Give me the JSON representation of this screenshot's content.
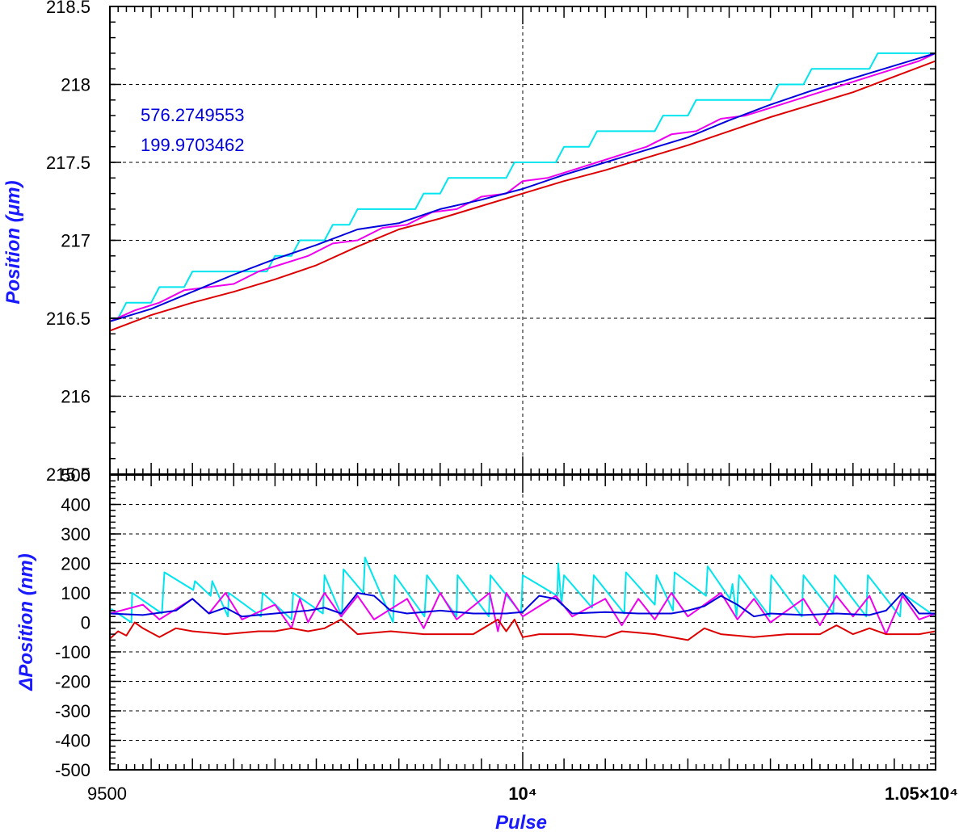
{
  "chart_data": [
    {
      "type": "line",
      "title": "",
      "xlabel": "",
      "ylabel": "Position (μm)",
      "xlim": [
        9500,
        10500
      ],
      "ylim": [
        215.5,
        218.5
      ],
      "x_ticks": [
        9500,
        10000,
        10500
      ],
      "x_tick_labels": [
        "9500",
        "10⁴",
        "1.05×10⁴"
      ],
      "y_ticks": [
        215.5,
        216,
        216.5,
        217,
        217.5,
        218,
        218.5
      ],
      "y_tick_labels": [
        "215.5",
        "216",
        "216.5",
        "217",
        "217.5",
        "218",
        "218.5"
      ],
      "grid": true,
      "annotations": [
        "576.2749553",
        "199.9703462"
      ],
      "series": [
        {
          "color": "#00e5ee",
          "x": [
            9500,
            9510,
            9520,
            9550,
            9560,
            9590,
            9600,
            9630,
            9640,
            9660,
            9670,
            9690,
            9700,
            9720,
            9730,
            9760,
            9770,
            9790,
            9800,
            9830,
            9840,
            9870,
            9880,
            9900,
            9910,
            9940,
            9950,
            9980,
            9990,
            10000,
            10010,
            10040,
            10050,
            10080,
            10090,
            10120,
            10130,
            10160,
            10170,
            10200,
            10210,
            10230,
            10240,
            10260,
            10270,
            10300,
            10310,
            10340,
            10350,
            10380,
            10390,
            10420,
            10430,
            10460,
            10470,
            10500
          ],
          "y": [
            216.5,
            216.5,
            216.6,
            216.6,
            216.7,
            216.7,
            216.8,
            216.8,
            216.8,
            216.8,
            216.8,
            216.8,
            216.9,
            216.9,
            217.0,
            217.0,
            217.1,
            217.1,
            217.2,
            217.2,
            217.2,
            217.2,
            217.3,
            217.3,
            217.4,
            217.4,
            217.4,
            217.4,
            217.5,
            217.5,
            217.5,
            217.5,
            217.6,
            217.6,
            217.7,
            217.7,
            217.7,
            217.7,
            217.8,
            217.8,
            217.9,
            217.9,
            217.9,
            217.9,
            217.9,
            217.9,
            218.0,
            218.0,
            218.1,
            218.1,
            218.1,
            218.1,
            218.2,
            218.2,
            218.2,
            218.2
          ]
        },
        {
          "color": "#ee00ee",
          "x": [
            9500,
            9530,
            9560,
            9590,
            9620,
            9650,
            9680,
            9710,
            9740,
            9770,
            9800,
            9830,
            9860,
            9890,
            9920,
            9950,
            9980,
            10000,
            10030,
            10060,
            10090,
            10120,
            10150,
            10180,
            10210,
            10240,
            10270,
            10300,
            10330,
            10360,
            10390,
            10420,
            10450,
            10480,
            10500
          ],
          "y": [
            216.48,
            216.55,
            216.6,
            216.68,
            216.7,
            216.72,
            216.8,
            216.85,
            216.9,
            216.98,
            217.0,
            217.08,
            217.1,
            217.18,
            217.2,
            217.28,
            217.3,
            217.38,
            217.4,
            217.45,
            217.5,
            217.55,
            217.6,
            217.68,
            217.7,
            217.78,
            217.8,
            217.85,
            217.9,
            217.95,
            218.0,
            218.05,
            218.1,
            218.15,
            218.2
          ]
        },
        {
          "color": "#0000dd",
          "x": [
            9500,
            9550,
            9600,
            9650,
            9700,
            9750,
            9800,
            9850,
            9900,
            9950,
            10000,
            10050,
            10100,
            10150,
            10200,
            10250,
            10300,
            10350,
            10400,
            10450,
            10500
          ],
          "y": [
            216.48,
            216.56,
            216.67,
            216.78,
            216.88,
            216.97,
            217.07,
            217.11,
            217.2,
            217.26,
            217.33,
            217.42,
            217.5,
            217.58,
            217.66,
            217.77,
            217.87,
            217.96,
            218.04,
            218.12,
            218.2
          ]
        },
        {
          "color": "#dd0000",
          "x": [
            9500,
            9550,
            9600,
            9650,
            9700,
            9750,
            9800,
            9850,
            9900,
            9950,
            10000,
            10050,
            10100,
            10150,
            10200,
            10250,
            10300,
            10350,
            10400,
            10450,
            10500
          ],
          "y": [
            216.42,
            216.52,
            216.6,
            216.67,
            216.75,
            216.84,
            216.96,
            217.07,
            217.14,
            217.22,
            217.3,
            217.38,
            217.45,
            217.53,
            217.61,
            217.7,
            217.79,
            217.87,
            217.95,
            218.05,
            218.15
          ]
        }
      ]
    },
    {
      "type": "line",
      "title": "",
      "xlabel": "Pulse",
      "ylabel": "ΔPosition (nm)",
      "xlim": [
        9500,
        10500
      ],
      "ylim": [
        -500,
        500
      ],
      "x_ticks": [
        9500,
        10000,
        10500
      ],
      "x_tick_labels": [
        "9500",
        "10⁴",
        "1.05×10⁴"
      ],
      "y_ticks": [
        -500,
        -400,
        -300,
        -200,
        -100,
        0,
        100,
        200,
        300,
        400,
        500
      ],
      "y_tick_labels": [
        "-500",
        "-400",
        "-300",
        "-200",
        "-100",
        "0",
        "100",
        "200",
        "300",
        "400",
        "500"
      ],
      "grid": true,
      "series": [
        {
          "color": "#00e5ee",
          "x": [
            9500,
            9502,
            9526,
            9527,
            9563,
            9566,
            9601,
            9603,
            9622,
            9624,
            9643,
            9644,
            9683,
            9685,
            9720,
            9722,
            9758,
            9760,
            9781,
            9783,
            9807,
            9809,
            9843,
            9845,
            9881,
            9884,
            9920,
            9921,
            9959,
            9961,
            9998,
            10000,
            10042,
            10043,
            10047,
            10050,
            10084,
            10086,
            10123,
            10125,
            10160,
            10162,
            10182,
            10184,
            10222,
            10224,
            10251,
            10254,
            10259,
            10262,
            10299,
            10301,
            10338,
            10340,
            10376,
            10378,
            10416,
            10418,
            10457,
            10459,
            10500
          ],
          "y": [
            25,
            45,
            0,
            100,
            30,
            170,
            110,
            140,
            90,
            140,
            20,
            100,
            20,
            100,
            10,
            100,
            30,
            160,
            20,
            180,
            100,
            220,
            0,
            160,
            20,
            160,
            20,
            160,
            20,
            160,
            30,
            160,
            90,
            200,
            60,
            160,
            50,
            160,
            30,
            170,
            60,
            160,
            40,
            170,
            90,
            190,
            80,
            130,
            20,
            160,
            20,
            160,
            20,
            160,
            30,
            160,
            20,
            160,
            20,
            100,
            20
          ]
        },
        {
          "color": "#ee00ee",
          "x": [
            9500,
            9540,
            9560,
            9600,
            9620,
            9640,
            9660,
            9700,
            9720,
            9730,
            9740,
            9760,
            9780,
            9800,
            9820,
            9860,
            9880,
            9900,
            9920,
            9960,
            9970,
            9980,
            10000,
            10040,
            10060,
            10100,
            10120,
            10140,
            10160,
            10180,
            10200,
            10240,
            10260,
            10280,
            10300,
            10340,
            10360,
            10380,
            10400,
            10420,
            10440,
            10460,
            10480,
            10500
          ],
          "y": [
            30,
            60,
            10,
            80,
            30,
            100,
            10,
            60,
            -20,
            80,
            0,
            100,
            20,
            90,
            10,
            80,
            -20,
            100,
            10,
            100,
            -30,
            100,
            20,
            90,
            20,
            80,
            -10,
            80,
            10,
            100,
            20,
            100,
            10,
            80,
            0,
            80,
            -10,
            90,
            20,
            90,
            -40,
            90,
            10,
            30
          ]
        },
        {
          "color": "#0000dd",
          "x": [
            9500,
            9540,
            9580,
            9600,
            9620,
            9640,
            9660,
            9700,
            9740,
            9760,
            9780,
            9800,
            9820,
            9840,
            9860,
            9880,
            9900,
            9940,
            9980,
            10000,
            10020,
            10040,
            10060,
            10100,
            10140,
            10180,
            10200,
            10220,
            10240,
            10260,
            10280,
            10300,
            10340,
            10380,
            10420,
            10440,
            10460,
            10480,
            10500
          ],
          "y": [
            30,
            25,
            40,
            80,
            30,
            50,
            20,
            30,
            40,
            50,
            30,
            100,
            90,
            40,
            30,
            35,
            40,
            30,
            30,
            35,
            90,
            80,
            30,
            35,
            30,
            30,
            40,
            55,
            90,
            60,
            20,
            30,
            25,
            30,
            25,
            40,
            100,
            30,
            30
          ]
        },
        {
          "color": "#dd0000",
          "x": [
            9500,
            9510,
            9520,
            9530,
            9540,
            9560,
            9580,
            9600,
            9640,
            9680,
            9700,
            9720,
            9740,
            9760,
            9780,
            9800,
            9840,
            9880,
            9900,
            9940,
            9970,
            9980,
            9990,
            10000,
            10020,
            10060,
            10100,
            10120,
            10160,
            10200,
            10220,
            10240,
            10280,
            10320,
            10360,
            10380,
            10400,
            10420,
            10440,
            10480,
            10500
          ],
          "y": [
            -55,
            -30,
            -45,
            0,
            -20,
            -50,
            -20,
            -30,
            -40,
            -30,
            -30,
            -20,
            -30,
            -20,
            10,
            -40,
            -30,
            -40,
            -40,
            -40,
            10,
            -30,
            10,
            -50,
            -40,
            -40,
            -50,
            -30,
            -40,
            -60,
            -20,
            -40,
            -50,
            -40,
            -40,
            -10,
            -40,
            -20,
            -40,
            -40,
            -30
          ]
        }
      ]
    }
  ]
}
